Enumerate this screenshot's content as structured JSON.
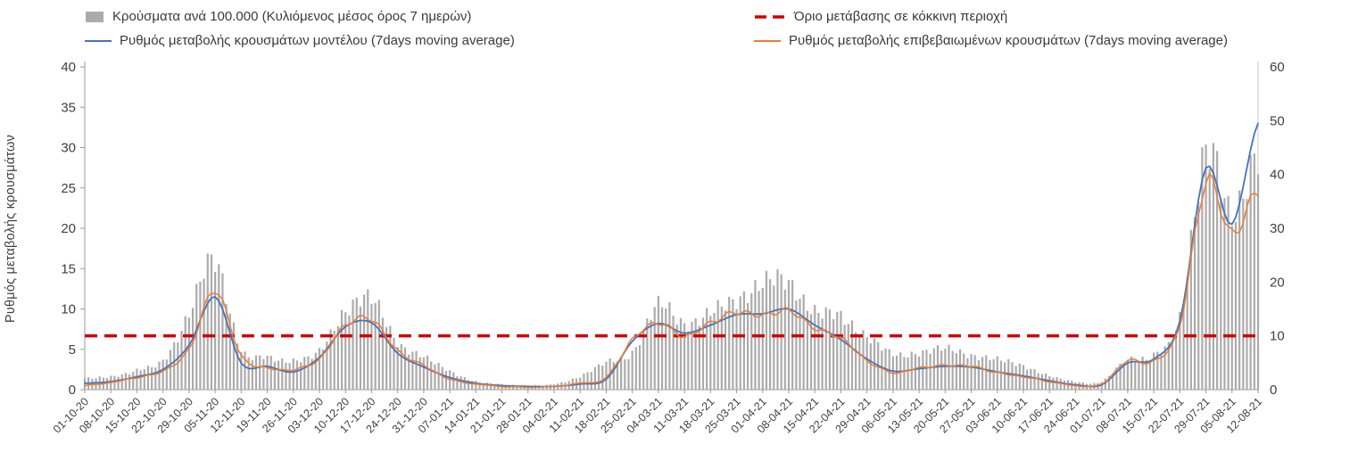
{
  "chart_data": {
    "type": "bar+line",
    "title": "",
    "grid": false,
    "legend_position": "top",
    "x_tick_labels": [
      "01-10-20",
      "08-10-20",
      "15-10-20",
      "22-10-20",
      "29-10-20",
      "05-11-20",
      "12-11-20",
      "19-11-20",
      "26-11-20",
      "03-12-20",
      "10-12-20",
      "17-12-20",
      "24-12-20",
      "31-12-20",
      "07-01-21",
      "14-01-21",
      "21-01-21",
      "28-01-21",
      "04-02-21",
      "11-02-21",
      "18-02-21",
      "25-02-21",
      "04-03-21",
      "11-03-21",
      "18-03-21",
      "25-03-21",
      "01-04-21",
      "08-04-21",
      "15-04-21",
      "22-04-21",
      "29-04-21",
      "06-05-21",
      "13-05-21",
      "20-05-21",
      "27-05-21",
      "03-06-21",
      "10-06-21",
      "17-06-21",
      "24-06-21",
      "01-07-21",
      "08-07-21",
      "15-07-21",
      "22-07-21",
      "29-07-21",
      "05-08-21",
      "12-08-21"
    ],
    "left_axis": {
      "label": "Ρυθμός μεταβολής κρουσμάτων",
      "min": 0,
      "max": 40,
      "ticks": [
        0,
        5,
        10,
        15,
        20,
        25,
        30,
        35,
        40
      ]
    },
    "right_axis": {
      "label": "",
      "min": 0,
      "max": 60,
      "ticks": [
        0,
        10,
        20,
        30,
        40,
        50,
        60
      ]
    },
    "series": [
      {
        "name": "Κρούσματα ανά 100.000 (Κυλιόμενος μέσος όρος 7 ημερών)",
        "type": "bar",
        "axis": "right",
        "color": "#ababab",
        "values": [
          2,
          2.5,
          3.5,
          5.5,
          14,
          24,
          7.5,
          6,
          5.5,
          7,
          15,
          16.5,
          9,
          6,
          3.5,
          1.5,
          1,
          0.8,
          1,
          2.5,
          5,
          7,
          15.5,
          12.5,
          14,
          17,
          19.5,
          20,
          14.5,
          13.5,
          10,
          6.5,
          7,
          7.5,
          6.5,
          5.5,
          4.5,
          2.5,
          1.5,
          1.5,
          5.5,
          6.5,
          13,
          46,
          31,
          46
        ]
      },
      {
        "name": "Ρυθμός μεταβολής κρουσμάτων μοντέλου (7days moving average)",
        "type": "line",
        "axis": "left",
        "color": "#4472c4",
        "values": [
          0.8,
          1.0,
          1.6,
          2.5,
          5.5,
          11.5,
          3.3,
          2.9,
          2.2,
          4.0,
          7.8,
          8.3,
          4.5,
          2.8,
          1.5,
          0.8,
          0.5,
          0.4,
          0.4,
          0.7,
          1.3,
          6.0,
          8.2,
          7.0,
          8.0,
          9.3,
          9.4,
          10.0,
          8.0,
          6.2,
          3.8,
          2.3,
          2.6,
          2.9,
          2.8,
          2.2,
          1.7,
          1.1,
          0.6,
          0.6,
          3.3,
          3.8,
          8.5,
          27.5,
          20.5,
          33.0
        ]
      },
      {
        "name": "Ρυθμός μεταβολής επιβεβαιωμένων κρουσμάτων (7days moving average)",
        "type": "line",
        "axis": "left",
        "color": "#ed7d31",
        "values": [
          0.5,
          0.9,
          1.5,
          2.3,
          5.0,
          12.3,
          4.2,
          2.7,
          2.5,
          3.8,
          8.0,
          8.7,
          4.8,
          3.0,
          1.3,
          0.7,
          0.4,
          0.3,
          0.4,
          0.8,
          1.5,
          6.2,
          8.3,
          6.6,
          8.3,
          9.6,
          9.2,
          9.8,
          7.6,
          6.4,
          3.6,
          2.1,
          2.7,
          3.0,
          2.9,
          2.1,
          1.6,
          1.0,
          0.5,
          0.7,
          3.6,
          3.5,
          8.0,
          25.8,
          19.3,
          24.8
        ]
      },
      {
        "name": "Όριο μετάβασης σε κόκκινη περιοχή",
        "type": "threshold",
        "axis": "right",
        "color": "#d10000",
        "value": 10
      }
    ]
  }
}
